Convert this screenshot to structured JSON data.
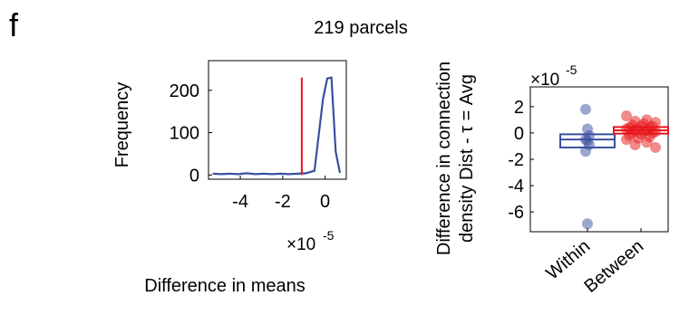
{
  "panel_letter": "f",
  "chart_data": [
    {
      "type": "line",
      "title": "",
      "xlabel": "Difference in means",
      "ylabel": "Frequency",
      "x_exponent_label": "×10",
      "x_exponent_power": "-5",
      "xlim": [
        -5.5,
        1.0
      ],
      "ylim": [
        -10,
        270
      ],
      "xticks": [
        -4,
        -2,
        0
      ],
      "xtick_labels": [
        "-4",
        "-2",
        "0"
      ],
      "yticks": [
        0,
        100,
        200
      ],
      "ytick_labels": [
        "0",
        "100",
        "200"
      ],
      "x": [
        -5.3,
        -4.9,
        -4.5,
        -4.1,
        -3.7,
        -3.3,
        -2.9,
        -2.5,
        -2.1,
        -1.7,
        -1.3,
        -0.9,
        -0.5,
        -0.1,
        0.1,
        0.3,
        0.5,
        0.7
      ],
      "values": [
        3,
        2,
        3,
        2,
        4,
        2,
        3,
        2,
        3,
        2,
        3,
        4,
        10,
        180,
        228,
        230,
        55,
        5
      ],
      "series_color": "#3a4fa0",
      "vline": {
        "x": -1.1,
        "color": "#e8151a",
        "ymin": 0,
        "ymax": 230
      },
      "grid": false
    },
    {
      "type": "box_scatter",
      "title": "219 parcels",
      "ylabel_line1": "Difference in connection",
      "ylabel_line2": "density Dist - τ = Avg",
      "y_exponent_label": "×10",
      "y_exponent_power": "-5",
      "ylim": [
        -7.5,
        3.5
      ],
      "yticks": [
        2,
        0,
        -2,
        -4,
        -6
      ],
      "ytick_labels": [
        "2",
        "0",
        "-2",
        "-4",
        "-6"
      ],
      "categories": [
        "Within",
        "Between"
      ],
      "series": [
        {
          "category": "Within",
          "color": "#3a4fa0",
          "box": {
            "q1": -1.1,
            "median": -0.5,
            "q3": -0.1
          },
          "points": [
            1.8,
            0.3,
            -0.2,
            -0.5,
            -0.6,
            -0.9,
            -1.4,
            -6.9
          ]
        },
        {
          "category": "Between",
          "color": "#e8151a",
          "box": {
            "q1": -0.05,
            "median": 0.2,
            "q3": 0.45
          },
          "points": [
            1.3,
            1.0,
            0.9,
            0.8,
            0.7,
            0.6,
            0.5,
            0.5,
            0.4,
            0.4,
            0.3,
            0.3,
            0.2,
            0.2,
            0.1,
            0.1,
            0.0,
            0.0,
            -0.1,
            -0.2,
            -0.3,
            -0.4,
            -0.5,
            -0.7,
            -0.9,
            -1.1
          ]
        }
      ],
      "grid": false
    }
  ]
}
